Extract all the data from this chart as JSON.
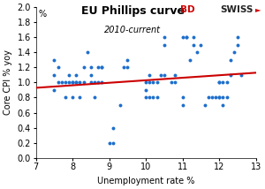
{
  "title": "EU Phillips curve",
  "subtitle": "2010-current",
  "xlabel": "Unemployment rate %",
  "ylabel": "Core CPI % yoy",
  "xlim": [
    7,
    13
  ],
  "ylim": [
    0.0,
    2.0
  ],
  "xticks": [
    7,
    8,
    9,
    10,
    11,
    12,
    13
  ],
  "yticks": [
    0.0,
    0.2,
    0.4,
    0.6,
    0.8,
    1.0,
    1.2,
    1.4,
    1.6,
    1.8,
    2.0
  ],
  "percent_label": "%",
  "dot_color": "#1e6fcc",
  "line_color": "#cc0000",
  "background_color": "#ffffff",
  "scatter_x": [
    7.5,
    7.5,
    7.5,
    7.6,
    7.6,
    7.7,
    7.8,
    7.8,
    7.9,
    7.9,
    8.0,
    8.0,
    8.0,
    8.1,
    8.1,
    8.1,
    8.2,
    8.2,
    8.3,
    8.3,
    8.4,
    8.5,
    8.5,
    8.5,
    8.6,
    8.6,
    8.7,
    8.7,
    8.8,
    8.8,
    8.8,
    9.0,
    9.1,
    9.1,
    9.3,
    9.4,
    9.5,
    9.5,
    10.0,
    10.0,
    10.0,
    10.1,
    10.1,
    10.1,
    10.2,
    10.2,
    10.3,
    10.3,
    10.4,
    10.5,
    10.5,
    10.5,
    10.7,
    10.8,
    10.8,
    11.0,
    11.0,
    11.0,
    11.1,
    11.1,
    11.2,
    11.3,
    11.3,
    11.4,
    11.5,
    11.6,
    11.7,
    11.8,
    11.9,
    12.0,
    12.0,
    12.0,
    12.0,
    12.1,
    12.1,
    12.1,
    12.2,
    12.2,
    12.3,
    12.3,
    12.4,
    12.5,
    12.5,
    12.6
  ],
  "scatter_y": [
    0.9,
    1.1,
    1.3,
    1.0,
    1.2,
    1.0,
    0.8,
    1.0,
    1.0,
    1.1,
    0.8,
    1.0,
    1.0,
    1.0,
    1.0,
    1.1,
    0.8,
    1.0,
    1.0,
    1.2,
    1.4,
    1.0,
    1.1,
    1.2,
    0.8,
    1.0,
    1.0,
    1.2,
    1.0,
    1.2,
    1.2,
    0.2,
    0.2,
    0.4,
    0.7,
    1.2,
    1.2,
    1.3,
    0.8,
    0.9,
    1.0,
    0.8,
    1.0,
    1.1,
    0.8,
    1.0,
    0.8,
    1.0,
    1.1,
    1.5,
    1.6,
    1.1,
    1.0,
    1.0,
    1.1,
    0.7,
    0.8,
    1.6,
    1.6,
    1.6,
    1.3,
    1.5,
    1.6,
    1.4,
    1.5,
    0.7,
    0.8,
    0.8,
    0.8,
    0.8,
    0.8,
    1.0,
    1.0,
    0.7,
    0.8,
    1.0,
    0.8,
    1.0,
    1.1,
    1.3,
    1.4,
    1.5,
    1.6,
    1.1
  ],
  "trendline_x": [
    7.0,
    13.0
  ],
  "trendline_y": [
    0.93,
    1.13
  ],
  "bdswiss_bd": "BD",
  "bdswiss_swiss": "SWISS",
  "bdswiss_arrow": "►",
  "bdswiss_color": "#cc0000",
  "bdswiss_arrow_color": "#cc0000"
}
